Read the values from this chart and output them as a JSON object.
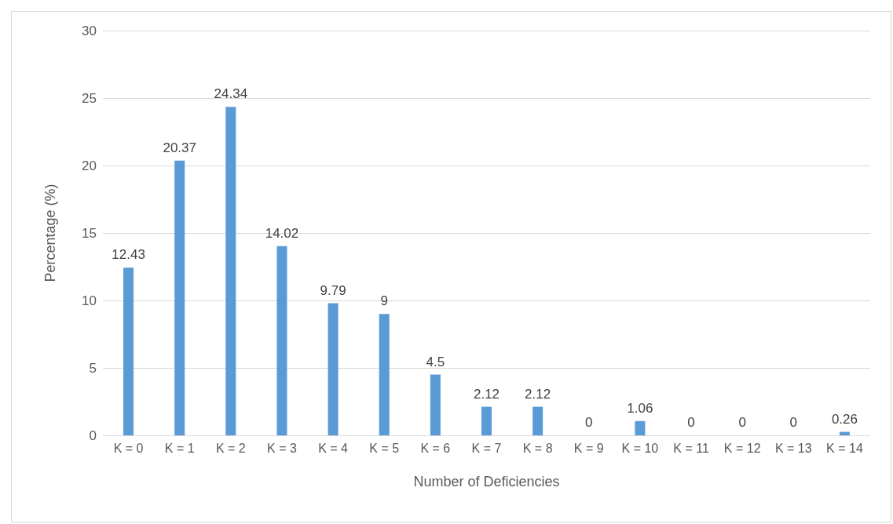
{
  "chart_data": {
    "type": "bar",
    "xlabel": "Number of Deficiencies",
    "ylabel": "Percentage (%)",
    "categories": [
      "K = 0",
      "K = 1",
      "K = 2",
      "K = 3",
      "K = 4",
      "K = 5",
      "K = 6",
      "K = 7",
      "K = 8",
      "K = 9",
      "K = 10",
      "K = 11",
      "K = 12",
      "K = 13",
      "K = 14"
    ],
    "values": [
      12.43,
      20.37,
      24.34,
      14.02,
      9.79,
      9,
      4.5,
      2.12,
      2.12,
      0,
      1.06,
      0,
      0,
      0,
      0.26
    ],
    "color": "#5b9bd5",
    "ylim": [
      0,
      30
    ],
    "yticks": [
      0,
      5,
      10,
      15,
      20,
      25,
      30
    ],
    "grid": "y",
    "data_labels": true
  }
}
